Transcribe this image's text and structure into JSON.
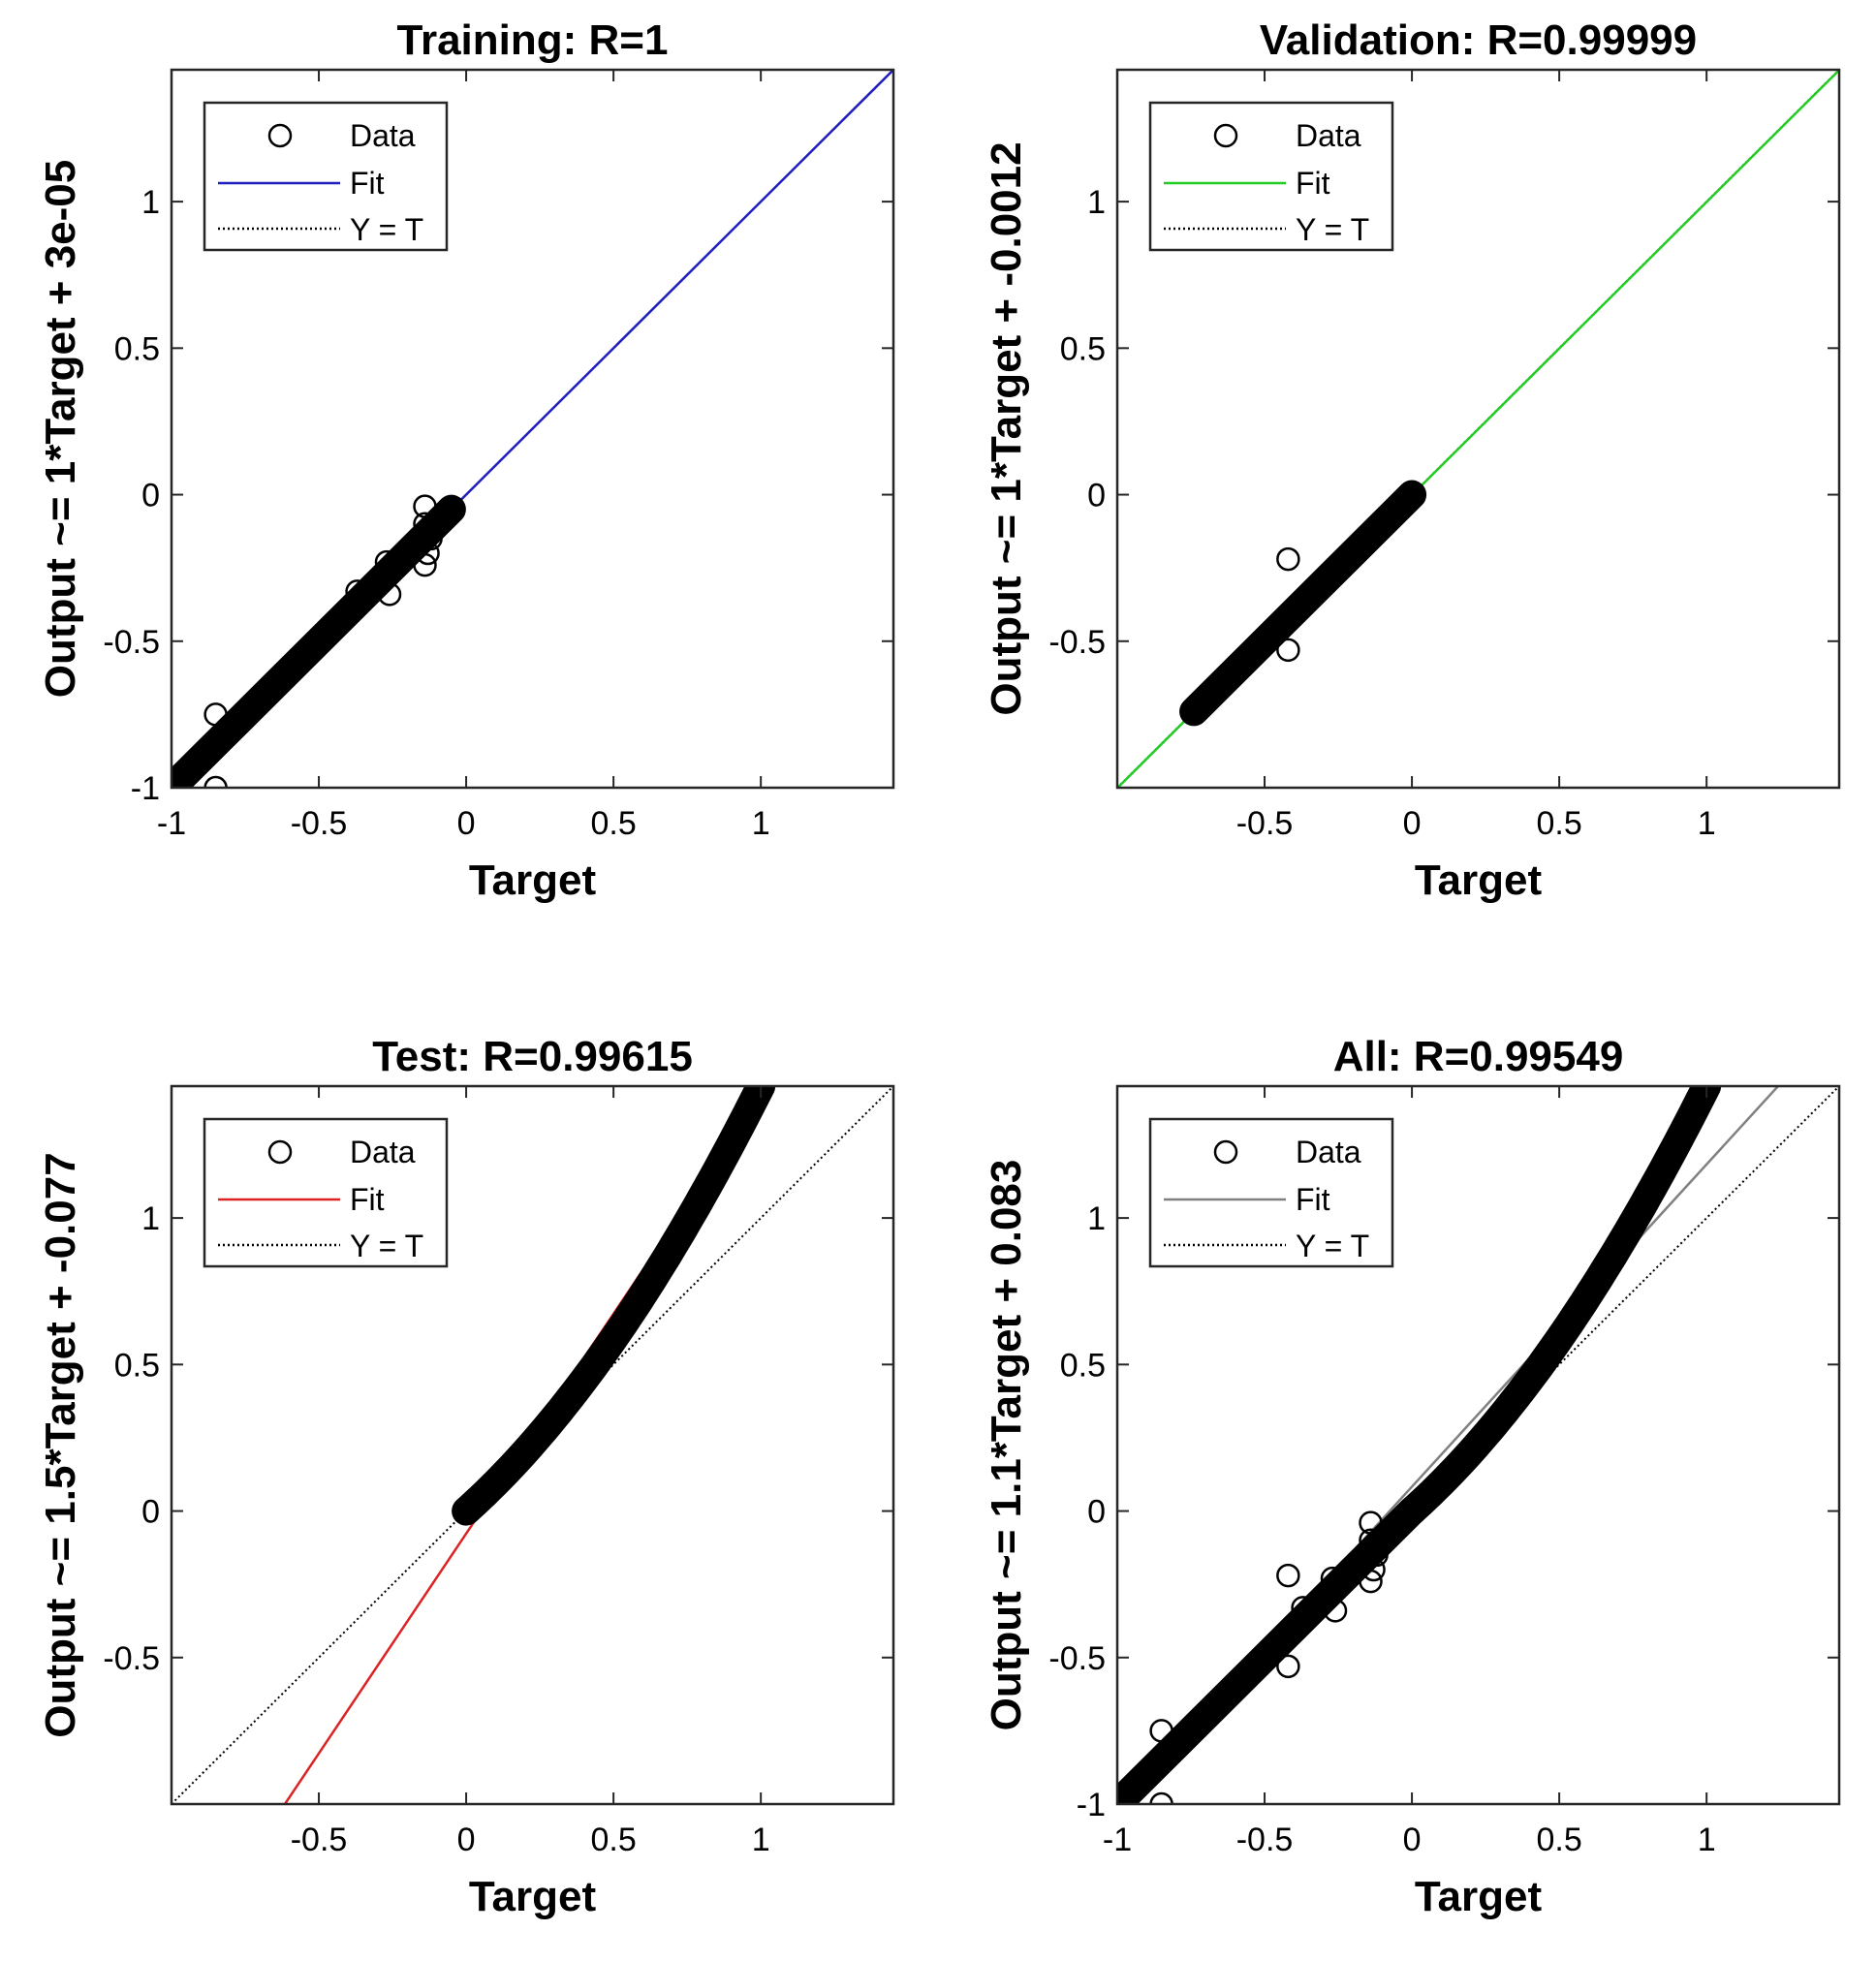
{
  "chart_data": [
    {
      "type": "scatter",
      "title": "Training: R=1",
      "xlabel": "Target",
      "ylabel": "Output ~= 1*Target + 3e-05",
      "xlim": [
        -1,
        1.45
      ],
      "ylim": [
        -1,
        1.45
      ],
      "xticks": [
        "-1",
        "-0.5",
        "0",
        "0.5",
        "1"
      ],
      "yticks": [
        "-1",
        "-0.5",
        "0",
        "0.5",
        "1"
      ],
      "fit_color": "#1f1fbf",
      "fit": {
        "slope": 1,
        "intercept": 3e-05
      },
      "dense_segments": [
        [
          [
            -1,
            -1
          ],
          [
            -0.05,
            -0.05
          ]
        ]
      ],
      "points": [
        [
          -0.85,
          -0.75
        ],
        [
          -0.85,
          -1.0
        ],
        [
          -0.37,
          -0.33
        ],
        [
          -0.27,
          -0.23
        ],
        [
          -0.26,
          -0.34
        ],
        [
          -0.14,
          -0.04
        ],
        [
          -0.14,
          -0.1
        ],
        [
          -0.13,
          -0.2
        ],
        [
          -0.14,
          -0.24
        ],
        [
          -0.12,
          -0.15
        ]
      ],
      "legend": [
        "Data",
        "Fit",
        "Y = T"
      ]
    },
    {
      "type": "scatter",
      "title": "Validation: R=0.99999",
      "xlabel": "Target",
      "ylabel": "Output ~= 1*Target + -0.0012",
      "xlim": [
        -1,
        1.45
      ],
      "ylim": [
        -1,
        1.45
      ],
      "xticks": [
        "-0.5",
        "0",
        "0.5",
        "1"
      ],
      "yticks": [
        "-0.5",
        "0",
        "0.5",
        "1"
      ],
      "fit_color": "#22cc22",
      "fit": {
        "slope": 1,
        "intercept": -0.0012
      },
      "dense_segments": [
        [
          [
            -0.74,
            -0.74
          ],
          [
            0.0,
            0.0
          ]
        ]
      ],
      "points": [
        [
          -0.42,
          -0.22
        ],
        [
          -0.42,
          -0.53
        ]
      ],
      "legend": [
        "Data",
        "Fit",
        "Y = T"
      ]
    },
    {
      "type": "scatter",
      "title": "Test: R=0.99615",
      "xlabel": "Target",
      "ylabel": "Output ~= 1.5*Target + -0.077",
      "xlim": [
        -1,
        1.45
      ],
      "ylim": [
        -1,
        1.45
      ],
      "xticks": [
        "-0.5",
        "0",
        "0.5",
        "1"
      ],
      "yticks": [
        "-0.5",
        "0",
        "0.5",
        "1"
      ],
      "fit_color": "#dd2222",
      "fit": {
        "slope": 1.5,
        "intercept": -0.077
      },
      "dense_curve": {
        "x_from": 0,
        "x_to": 1.0,
        "a": 0.9,
        "b": 0.55
      },
      "points": [],
      "legend": [
        "Data",
        "Fit",
        "Y = T"
      ]
    },
    {
      "type": "scatter",
      "title": "All: R=0.99549",
      "xlabel": "Target",
      "ylabel": "Output ~= 1.1*Target + 0.083",
      "xlim": [
        -1,
        1.45
      ],
      "ylim": [
        -1,
        1.45
      ],
      "xticks": [
        "-1",
        "-0.5",
        "0",
        "0.5",
        "1"
      ],
      "yticks": [
        "-1",
        "-0.5",
        "0",
        "0.5",
        "1"
      ],
      "fit_color": "#808080",
      "fit": {
        "slope": 1.1,
        "intercept": 0.083
      },
      "dense_segments": [
        [
          [
            -1,
            -1
          ],
          [
            0.0,
            0.0
          ]
        ]
      ],
      "dense_curve": {
        "x_from": 0,
        "x_to": 1.0,
        "a": 0.9,
        "b": 0.55
      },
      "points": [
        [
          -0.85,
          -0.75
        ],
        [
          -0.85,
          -1.0
        ],
        [
          -0.42,
          -0.22
        ],
        [
          -0.42,
          -0.53
        ],
        [
          -0.37,
          -0.33
        ],
        [
          -0.27,
          -0.23
        ],
        [
          -0.26,
          -0.34
        ],
        [
          -0.14,
          -0.04
        ],
        [
          -0.14,
          -0.1
        ],
        [
          -0.13,
          -0.2
        ],
        [
          -0.14,
          -0.24
        ],
        [
          -0.12,
          -0.15
        ]
      ],
      "legend": [
        "Data",
        "Fit",
        "Y = T"
      ]
    }
  ]
}
